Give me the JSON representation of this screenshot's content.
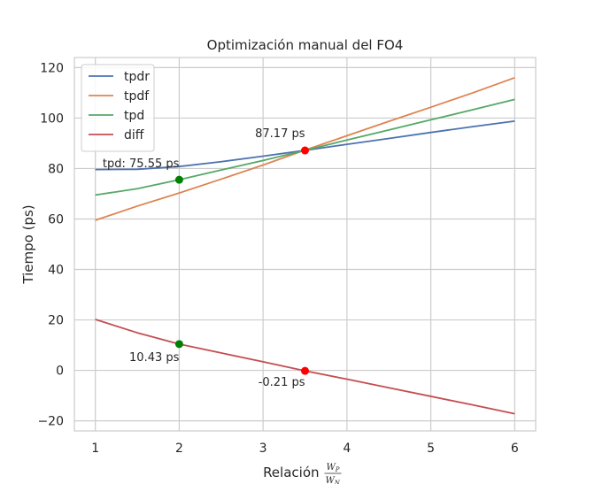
{
  "chart_data": {
    "type": "line",
    "title": "Optimización manual del FO4",
    "xlabel": "Relación",
    "xlabel_fraction": {
      "num_base": "W",
      "num_sub": "P",
      "den_base": "W",
      "den_sub": "N"
    },
    "ylabel": "Tiempo (ps)",
    "xlim": [
      0.75,
      6.25
    ],
    "ylim": [
      -24,
      124
    ],
    "xticks": [
      1,
      2,
      3,
      4,
      5,
      6
    ],
    "yticks": [
      -20,
      0,
      20,
      40,
      60,
      80,
      100,
      120
    ],
    "grid": true,
    "legend_position": "top-left",
    "x": [
      1,
      1.5,
      2,
      2.5,
      3,
      3.5,
      4,
      4.5,
      5,
      5.5,
      6
    ],
    "series": [
      {
        "name": "tpdr",
        "color": "#4c72b0",
        "values": [
          79.6,
          79.7,
          80.8,
          82.7,
          84.9,
          87.2,
          89.6,
          91.9,
          94.3,
          96.6,
          98.8
        ]
      },
      {
        "name": "tpdf",
        "color": "#dd8452",
        "values": [
          59.5,
          65.1,
          70.3,
          75.8,
          81.4,
          87.3,
          93.0,
          98.7,
          104.3,
          110.0,
          116.0
        ]
      },
      {
        "name": "tpd",
        "color": "#55a868",
        "values": [
          69.5,
          72.0,
          75.55,
          79.4,
          83.2,
          87.17,
          91.3,
          95.3,
          99.3,
          103.3,
          107.4
        ]
      },
      {
        "name": "diff",
        "color": "#c44e52",
        "values": [
          20.2,
          14.9,
          10.43,
          6.9,
          3.4,
          -0.21,
          -3.5,
          -6.9,
          -10.3,
          -13.7,
          -17.2
        ]
      }
    ],
    "markers": [
      {
        "x": 2,
        "y": 75.55,
        "color": "#008000"
      },
      {
        "x": 2,
        "y": 10.43,
        "color": "#008000"
      },
      {
        "x": 3.5,
        "y": 87.17,
        "color": "#ff0000"
      },
      {
        "x": 3.5,
        "y": -0.21,
        "color": "#ff0000"
      }
    ],
    "annotations": [
      {
        "text": "tpd: 75.55 ps",
        "x": 2,
        "y": 75.55,
        "anchor": "end",
        "dx": 0,
        "dy": -14
      },
      {
        "text": "10.43 ps",
        "x": 2,
        "y": 10.43,
        "anchor": "end",
        "dx": 0,
        "dy": 19
      },
      {
        "text": "87.17 ps",
        "x": 3.5,
        "y": 87.17,
        "anchor": "end",
        "dx": 0,
        "dy": -15
      },
      {
        "text": "-0.21 ps",
        "x": 3.5,
        "y": -0.21,
        "anchor": "end",
        "dx": 0,
        "dy": 17
      }
    ]
  }
}
